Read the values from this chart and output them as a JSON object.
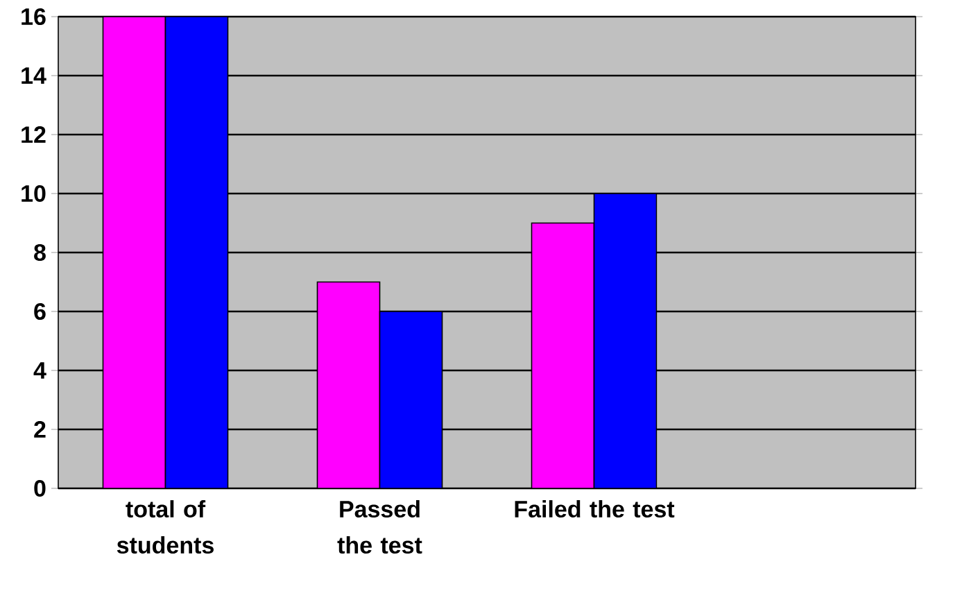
{
  "chart_data": {
    "type": "bar",
    "categories": [
      "total of students",
      "Passed the test",
      "Failed the test",
      null
    ],
    "series": [
      {
        "color": "#ff00ff",
        "values": [
          16,
          7,
          9,
          null
        ]
      },
      {
        "color": "#0000ff",
        "values": [
          16,
          6,
          10,
          null
        ]
      }
    ],
    "ylim": [
      0,
      16
    ],
    "yticks": [
      0,
      2,
      4,
      6,
      8,
      10,
      12,
      14,
      16
    ],
    "grid": "y"
  }
}
